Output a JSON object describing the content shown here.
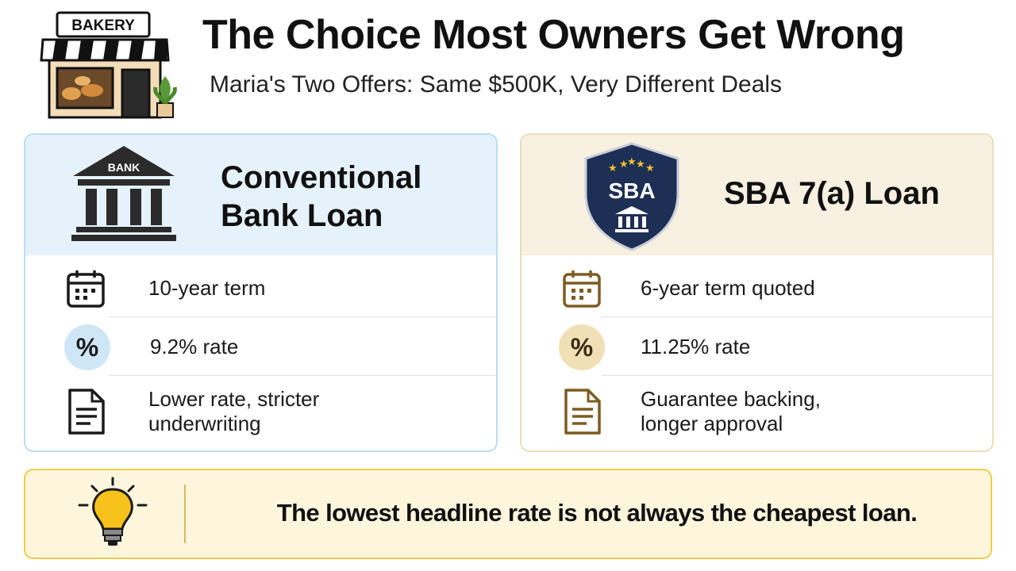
{
  "header": {
    "sign": "BAKERY",
    "title": "The Choice Most Owners Get Wrong",
    "subtitle": "Maria's Two Offers: Same $500K, Very Different Deals"
  },
  "cards": [
    {
      "icon_label": "BANK",
      "title": "Conventional Bank Loan",
      "rows": [
        "10-year term",
        "9.2% rate",
        "Lower rate, stricter underwriting"
      ]
    },
    {
      "icon_label": "SBA",
      "title": "SBA 7(a) Loan",
      "rows": [
        "6-year term quoted",
        "11.25% rate",
        "Guarantee backing, longer approval"
      ]
    }
  ],
  "callout": {
    "text": "The lowest headline rate is not always the cheapest loan."
  }
}
